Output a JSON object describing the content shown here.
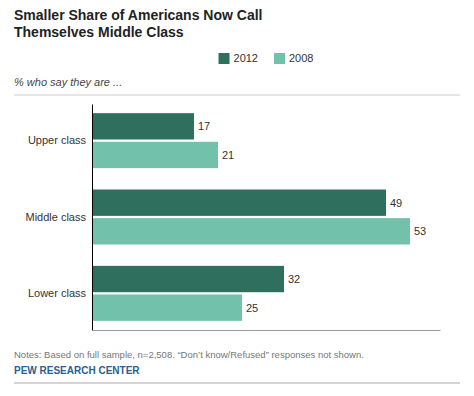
{
  "chart_data": {
    "type": "bar",
    "orientation": "horizontal",
    "title": "Smaller Share of Americans Now Call\nThemselves Middle Class",
    "subtitle": "% who say they are ...",
    "categories": [
      "Upper class",
      "Middle class",
      "Lower class"
    ],
    "series": [
      {
        "name": "2012",
        "color": "#2e6f5e",
        "values": [
          17,
          49,
          32
        ]
      },
      {
        "name": "2008",
        "color": "#72c1ab",
        "values": [
          21,
          53,
          25
        ]
      }
    ],
    "xlim": [
      0,
      58
    ],
    "data_labels": true,
    "tick_labels": "y",
    "legend": "top",
    "grid": false,
    "notes": "Notes: Based on full sample, n=2,508.  “Don’t know/Refused” responses not shown.",
    "source": "PEW RESEARCH CENTER"
  }
}
